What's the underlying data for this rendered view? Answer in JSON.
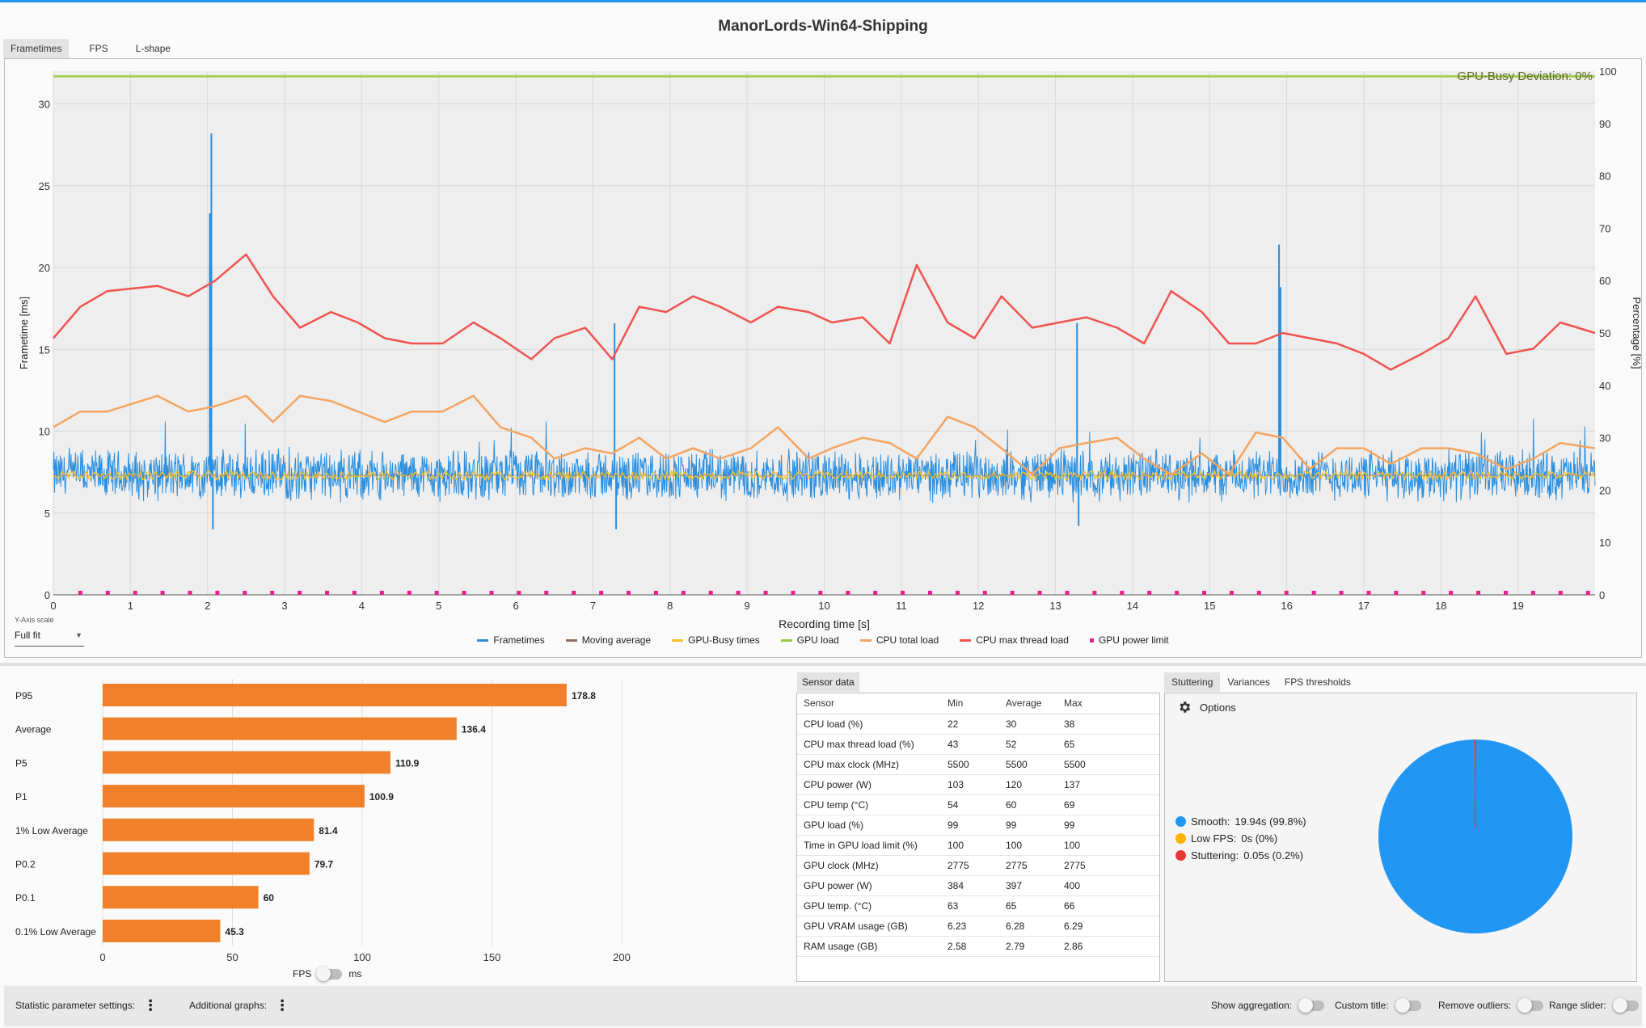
{
  "app": {
    "title": "ManorLords-Win64-Shipping"
  },
  "chart_tabs": [
    "Frametimes",
    "FPS",
    "L-shape"
  ],
  "chart_data": [
    {
      "type": "line",
      "xlabel": "Recording time [s]",
      "ylabel": "Frametime [ms]",
      "y2label": "Percentage [%]",
      "xlim": [
        0,
        20
      ],
      "ylim": [
        0,
        32
      ],
      "y2lim": [
        0,
        100
      ],
      "x_ticks": [
        0,
        1,
        2,
        3,
        4,
        5,
        6,
        7,
        8,
        9,
        10,
        11,
        12,
        13,
        14,
        15,
        16,
        17,
        18,
        19
      ],
      "y_ticks": [
        0,
        5,
        10,
        15,
        20,
        25,
        30
      ],
      "y2_ticks": [
        0,
        10,
        20,
        30,
        40,
        50,
        60,
        70,
        80,
        90,
        100
      ],
      "grid": true,
      "annotation": "GPU-Busy Deviation: 0%",
      "series": [
        {
          "name": "Frametimes",
          "color": "#2a8fe0",
          "axis": "left",
          "description_values": {
            "baseline": 7.3,
            "band_low": 6.0,
            "band_high": 8.8,
            "spikes": [
              [
                2.05,
                28.2
              ],
              [
                2.03,
                23.3
              ],
              [
                2.07,
                4.0
              ],
              [
                7.28,
                16.6
              ],
              [
                7.3,
                4.0
              ],
              [
                13.28,
                16.6
              ],
              [
                13.3,
                4.2
              ],
              [
                15.9,
                21.4
              ],
              [
                15.92,
                18.8
              ]
            ]
          }
        },
        {
          "name": "Moving average",
          "color": "#8d6e63",
          "axis": "left",
          "values_const": 7.3
        },
        {
          "name": "GPU-Busy times",
          "color": "#f1c232",
          "axis": "left",
          "values_const": 7.3
        },
        {
          "name": "GPU load",
          "color": "#9ccc40",
          "axis": "right",
          "values_const": 99
        },
        {
          "name": "CPU total load",
          "color": "#f4a460",
          "axis": "right",
          "x": [
            0,
            0.35,
            0.7,
            1.35,
            1.75,
            2.1,
            2.5,
            2.85,
            3.2,
            3.6,
            3.95,
            4.3,
            4.65,
            5.05,
            5.45,
            5.8,
            6.2,
            6.5,
            6.9,
            7.25,
            7.6,
            7.95,
            8.3,
            8.65,
            9.05,
            9.4,
            9.8,
            10.1,
            10.5,
            10.85,
            11.2,
            11.6,
            11.95,
            12.3,
            12.7,
            13.05,
            13.4,
            13.8,
            14.15,
            14.5,
            14.9,
            15.25,
            15.6,
            15.95,
            16.3,
            16.65,
            17.0,
            17.35,
            17.75,
            18.1,
            18.45,
            18.85,
            19.2,
            19.55,
            20.0
          ],
          "y": [
            32,
            35,
            35,
            38,
            35,
            36,
            38,
            33,
            38,
            37,
            35,
            33,
            35,
            35,
            38,
            32,
            30,
            26,
            28,
            27,
            30,
            26,
            28,
            26,
            28,
            32,
            26,
            28,
            30,
            29,
            26,
            34,
            32,
            28,
            23,
            28,
            29,
            30,
            26,
            23,
            27,
            23,
            31,
            30,
            24,
            28,
            28,
            25,
            28,
            28,
            27,
            24,
            26,
            29,
            28
          ]
        },
        {
          "name": "CPU max thread load",
          "color": "#ef5350",
          "axis": "right",
          "x": [
            0,
            0.35,
            0.7,
            1.35,
            1.75,
            2.1,
            2.5,
            2.85,
            3.2,
            3.6,
            3.95,
            4.3,
            4.65,
            5.05,
            5.45,
            5.8,
            6.2,
            6.5,
            6.9,
            7.25,
            7.6,
            7.95,
            8.3,
            8.65,
            9.05,
            9.4,
            9.8,
            10.1,
            10.5,
            10.85,
            11.2,
            11.6,
            11.95,
            12.3,
            12.7,
            13.05,
            13.4,
            13.8,
            14.15,
            14.5,
            14.9,
            15.25,
            15.6,
            15.95,
            16.3,
            16.65,
            17.0,
            17.35,
            17.75,
            18.1,
            18.45,
            18.85,
            19.2,
            19.55,
            20.0
          ],
          "y": [
            49,
            55,
            58,
            59,
            57,
            60,
            65,
            57,
            51,
            54,
            52,
            49,
            48,
            48,
            52,
            49,
            45,
            49,
            51,
            45,
            55,
            54,
            57,
            55,
            52,
            55,
            54,
            52,
            53,
            48,
            63,
            52,
            49,
            57,
            51,
            52,
            53,
            51,
            48,
            58,
            54,
            48,
            48,
            50,
            49,
            48,
            46,
            43,
            46,
            49,
            57,
            46,
            47,
            52,
            50
          ]
        },
        {
          "name": "GPU power limit",
          "color": "#e91e8c",
          "axis": "right",
          "values_const": 0
        }
      ]
    },
    {
      "type": "bar",
      "orientation": "horizontal",
      "categories": [
        "P95",
        "Average",
        "P5",
        "P1",
        "1% Low Average",
        "P0.2",
        "P0.1",
        "0.1% Low Average"
      ],
      "values": [
        178.8,
        136.4,
        110.9,
        100.9,
        81.4,
        79.7,
        60,
        45.3
      ],
      "value_labels": [
        "178.8",
        "136.4",
        "110.9",
        "100.9",
        "81.4",
        "79.7",
        "60",
        "45.3"
      ],
      "xlim": [
        0,
        200
      ],
      "x_ticks": [
        0,
        50,
        100,
        150,
        200
      ],
      "color": "#f0812a"
    },
    {
      "type": "pie",
      "labels": [
        "Smooth",
        "Low FPS",
        "Stuttering"
      ],
      "values": [
        99.8,
        0,
        0.2
      ],
      "colors": [
        "#2196f3",
        "#ffb300",
        "#e53935"
      ]
    }
  ],
  "yaxis_scale": {
    "label": "Y-Axis scale",
    "value": "Full fit"
  },
  "legend": [
    "Frametimes",
    "Moving average",
    "GPU-Busy times",
    "GPU load",
    "CPU total load",
    "CPU max thread load",
    "GPU power limit"
  ],
  "fps_toggle": {
    "left": "FPS",
    "right": "ms"
  },
  "sensor": {
    "tab": "Sensor data",
    "headers": [
      "Sensor",
      "Min",
      "Average",
      "Max"
    ],
    "rows": [
      [
        "CPU load (%)",
        "22",
        "30",
        "38"
      ],
      [
        "CPU max thread load (%)",
        "43",
        "52",
        "65"
      ],
      [
        "CPU max clock (MHz)",
        "5500",
        "5500",
        "5500"
      ],
      [
        "CPU power (W)",
        "103",
        "120",
        "137"
      ],
      [
        "CPU temp (°C)",
        "54",
        "60",
        "69"
      ],
      [
        "GPU load (%)",
        "99",
        "99",
        "99"
      ],
      [
        "Time in GPU load limit (%)",
        "100",
        "100",
        "100"
      ],
      [
        "GPU clock (MHz)",
        "2775",
        "2775",
        "2775"
      ],
      [
        "GPU power (W)",
        "384",
        "397",
        "400"
      ],
      [
        "GPU temp. (°C)",
        "63",
        "65",
        "66"
      ],
      [
        "GPU VRAM usage (GB)",
        "6.23",
        "6.28",
        "6.29"
      ],
      [
        "RAM usage (GB)",
        "2.58",
        "2.79",
        "2.86"
      ]
    ]
  },
  "stutter": {
    "tabs": [
      "Stuttering",
      "Variances",
      "FPS thresholds"
    ],
    "options_label": "Options",
    "legend": [
      {
        "label": "Smooth:",
        "value": "19.94s (99.8%)",
        "color": "#2196f3"
      },
      {
        "label": "Low FPS:",
        "value": "0s (0%)",
        "color": "#ffb300"
      },
      {
        "label": "Stuttering:",
        "value": "0.05s (0.2%)",
        "color": "#e53935"
      }
    ]
  },
  "bottom": {
    "stat_settings": "Statistic parameter settings:",
    "additional_graphs": "Additional graphs:",
    "show_aggregation": "Show aggregation:",
    "custom_title": "Custom title:",
    "remove_outliers": "Remove outliers:",
    "range_slider": "Range slider:"
  }
}
